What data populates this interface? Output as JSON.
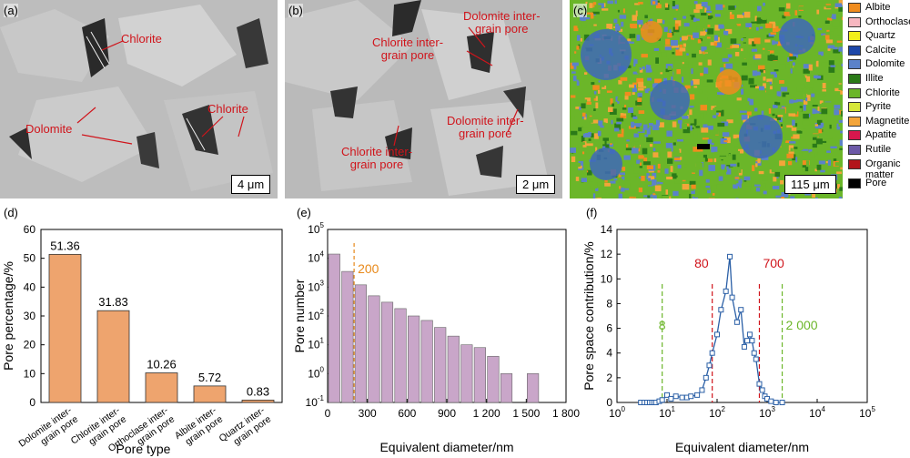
{
  "panels": {
    "a": {
      "tag": "(a)",
      "labels": [
        "Chlorite",
        "Dolomite",
        "Chlorite"
      ],
      "scale": "4 μm"
    },
    "b": {
      "tag": "(b)",
      "labels": [
        "Chlorite inter-\ngrain pore",
        "Dolomite inter-\ngrain pore",
        "Dolomite inter-\ngrain pore",
        "Chlorite inter-\ngrain pore"
      ],
      "scale": "2 μm"
    },
    "c": {
      "tag": "(c)",
      "scale": "115 μm"
    }
  },
  "legend": [
    {
      "name": "Albite",
      "color": "#f08c1e"
    },
    {
      "name": "Orthoclase",
      "color": "#f7b7c0"
    },
    {
      "name": "Quartz",
      "color": "#f2ef1a"
    },
    {
      "name": "Calcite",
      "color": "#1d47a8"
    },
    {
      "name": "Dolomite",
      "color": "#5b82c9"
    },
    {
      "name": "Illite",
      "color": "#2b7a18"
    },
    {
      "name": "Chlorite",
      "color": "#6bb629"
    },
    {
      "name": "Pyrite",
      "color": "#d7e83a"
    },
    {
      "name": "Magnetite",
      "color": "#f3a53a"
    },
    {
      "name": "Apatite",
      "color": "#d8174d"
    },
    {
      "name": "Rutile",
      "color": "#6c59a8"
    },
    {
      "name": "Organic\nmatter",
      "color": "#b3141a"
    },
    {
      "name": "Pore",
      "color": "#000000"
    }
  ],
  "chart_data": [
    {
      "tag": "(d)",
      "type": "bar",
      "categories": [
        "Dolomite inter-\ngrain pore",
        "Chlorite inter-\ngrain pore",
        "Orthoclase inter-\ngrain pore",
        "Albite inter-\ngrain pore",
        "Quartz inter-\ngrain pore"
      ],
      "values": [
        51.36,
        31.83,
        10.26,
        5.72,
        0.83
      ],
      "value_labels": [
        "51.36",
        "31.83",
        "10.26",
        "5.72",
        "0.83"
      ],
      "xlabel": "Pore type",
      "ylabel": "Pore percentage/%",
      "ylim": [
        0,
        60
      ],
      "yticks": [
        0,
        10,
        20,
        30,
        40,
        50,
        60
      ],
      "bar_color": "#eea46e"
    },
    {
      "tag": "(e)",
      "type": "bar",
      "x": [
        50,
        150,
        250,
        350,
        450,
        550,
        650,
        750,
        850,
        950,
        1050,
        1150,
        1250,
        1350,
        1550
      ],
      "values": [
        14000,
        3500,
        1200,
        500,
        300,
        180,
        100,
        70,
        40,
        20,
        10,
        8,
        4,
        1,
        1
      ],
      "xlabel": "Equivalent diameter/nm",
      "ylabel": "Pore number",
      "yscale": "log",
      "ylim": [
        0.1,
        100000
      ],
      "xlim": [
        0,
        1800
      ],
      "xticks": [
        "0",
        "300",
        "600",
        "900",
        "1 200",
        "1 500",
        "1 800"
      ],
      "annotation": {
        "x": 200,
        "text": "200",
        "color": "#e8891a"
      },
      "bar_color": "#c9a6c9"
    },
    {
      "tag": "(f)",
      "type": "line",
      "x": [
        3,
        3.5,
        4,
        4.5,
        5,
        5.5,
        6,
        7,
        8,
        10,
        12,
        15,
        20,
        25,
        30,
        40,
        50,
        60,
        70,
        80,
        100,
        120,
        150,
        180,
        200,
        250,
        300,
        350,
        400,
        450,
        500,
        550,
        600,
        700,
        800,
        900,
        1000,
        1200,
        1500,
        2000
      ],
      "y": [
        0,
        0,
        0,
        0,
        0,
        0,
        0,
        0.1,
        0.2,
        0.6,
        0.3,
        0.5,
        0.4,
        0.4,
        0.5,
        0.6,
        1.0,
        2.0,
        3.0,
        4.0,
        5.5,
        7.5,
        9.0,
        11.8,
        8.5,
        6.5,
        7.5,
        4.5,
        5.0,
        5.5,
        5.0,
        4.0,
        3.5,
        1.5,
        1.0,
        0.5,
        0.3,
        0.1,
        0,
        0
      ],
      "xlabel": "Equivalent diameter/nm",
      "ylabel": "Pore space contribution/%",
      "xscale": "log",
      "xlim": [
        1,
        100000
      ],
      "ylim": [
        0,
        14
      ],
      "yticks": [
        0,
        2,
        4,
        6,
        8,
        10,
        12,
        14
      ],
      "vlines": [
        {
          "x": 8,
          "text": "8",
          "color": "#6bb629"
        },
        {
          "x": 80,
          "text": "80",
          "color": "#d0141b"
        },
        {
          "x": 700,
          "text": "700",
          "color": "#d0141b"
        },
        {
          "x": 2000,
          "text": "2 000",
          "color": "#6bb629"
        }
      ],
      "line_color": "#2a5fa6"
    }
  ]
}
